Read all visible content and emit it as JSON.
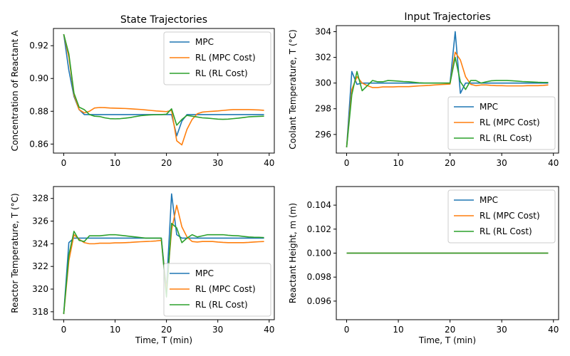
{
  "figure": {
    "colors": {
      "MPC": "#1f77b4",
      "RL (MPC Cost)": "#ff7f0e",
      "RL (RL Cost)": "#2ca02c"
    }
  },
  "chart_data": [
    {
      "type": "line",
      "title": "State Trajectories",
      "xlabel": "",
      "ylabel": "Concentration of Reactant A",
      "xlim": [
        -2,
        41
      ],
      "ylim": [
        0.8545,
        0.9305
      ],
      "xticks": [
        0,
        10,
        20,
        30,
        40
      ],
      "yticks": [
        0.86,
        0.88,
        0.9,
        0.92
      ],
      "ytick_labels": [
        "0.86",
        "0.88",
        "0.90",
        "0.92"
      ],
      "legend_position": "top-right",
      "x": [
        0,
        1,
        2,
        3,
        4,
        5,
        6,
        7,
        8,
        9,
        10,
        11,
        12,
        13,
        14,
        15,
        16,
        17,
        18,
        19,
        20,
        21,
        22,
        23,
        24,
        25,
        26,
        27,
        28,
        29,
        30,
        31,
        32,
        33,
        34,
        35,
        36,
        37,
        38,
        39
      ],
      "series": [
        {
          "name": "MPC",
          "values": [
            0.927,
            0.905,
            0.889,
            0.881,
            0.878,
            0.878,
            0.878,
            0.878,
            0.878,
            0.878,
            0.878,
            0.878,
            0.878,
            0.878,
            0.878,
            0.878,
            0.878,
            0.878,
            0.878,
            0.878,
            0.878,
            0.878,
            0.865,
            0.874,
            0.878,
            0.878,
            0.878,
            0.878,
            0.878,
            0.878,
            0.878,
            0.878,
            0.878,
            0.878,
            0.878,
            0.878,
            0.878,
            0.878,
            0.878,
            0.878
          ]
        },
        {
          "name": "RL (MPC Cost)",
          "values": [
            0.927,
            0.913,
            0.89,
            0.881,
            0.879,
            0.88,
            0.882,
            0.8823,
            0.8822,
            0.882,
            0.8819,
            0.8818,
            0.8817,
            0.8815,
            0.8813,
            0.8811,
            0.8808,
            0.8805,
            0.8802,
            0.88,
            0.8798,
            0.8805,
            0.862,
            0.8595,
            0.869,
            0.875,
            0.8785,
            0.8795,
            0.8798,
            0.88,
            0.8802,
            0.8805,
            0.8808,
            0.881,
            0.881,
            0.881,
            0.881,
            0.8809,
            0.8808,
            0.8806
          ]
        },
        {
          "name": "RL (RL Cost)",
          "values": [
            0.927,
            0.915,
            0.891,
            0.8825,
            0.881,
            0.878,
            0.877,
            0.8768,
            0.876,
            0.8755,
            0.8754,
            0.8755,
            0.8758,
            0.8762,
            0.8768,
            0.8773,
            0.8776,
            0.8778,
            0.8779,
            0.878,
            0.8782,
            0.8815,
            0.8715,
            0.875,
            0.8775,
            0.877,
            0.8765,
            0.876,
            0.8758,
            0.8755,
            0.8752,
            0.8751,
            0.8752,
            0.8755,
            0.8758,
            0.8762,
            0.8766,
            0.8768,
            0.8769,
            0.877
          ]
        }
      ]
    },
    {
      "type": "line",
      "title": "Input Trajectories",
      "xlabel": "",
      "ylabel": "Coolant Temperature, T (°C)",
      "xlim": [
        -2,
        41
      ],
      "ylim": [
        294.55,
        304.47
      ],
      "xticks": [
        0,
        10,
        20,
        30,
        40
      ],
      "yticks": [
        296,
        298,
        300,
        302,
        304
      ],
      "ytick_labels": [
        "296",
        "298",
        "300",
        "302",
        "304"
      ],
      "legend_position": "lower-right",
      "x": [
        0,
        1,
        2,
        3,
        4,
        5,
        6,
        7,
        8,
        9,
        10,
        11,
        12,
        13,
        14,
        15,
        16,
        17,
        18,
        19,
        20,
        21,
        22,
        23,
        24,
        25,
        26,
        27,
        28,
        29,
        30,
        31,
        32,
        33,
        34,
        35,
        36,
        37,
        38,
        39
      ],
      "series": [
        {
          "name": "MPC",
          "values": [
            295.0,
            300.9,
            299.9,
            300.0,
            300.0,
            300.0,
            300.0,
            300.0,
            300.0,
            300.0,
            300.0,
            300.0,
            300.0,
            300.0,
            300.0,
            300.0,
            300.0,
            300.0,
            300.0,
            300.0,
            300.0,
            304.0,
            299.2,
            300.0,
            300.0,
            300.0,
            300.0,
            300.0,
            300.0,
            300.0,
            300.0,
            300.0,
            300.0,
            300.0,
            300.0,
            300.0,
            300.0,
            300.0,
            300.0,
            300.0
          ]
        },
        {
          "name": "RL (MPC Cost)",
          "values": [
            295.0,
            299.5,
            300.5,
            300.0,
            299.8,
            299.65,
            299.65,
            299.7,
            299.7,
            299.7,
            299.72,
            299.72,
            299.72,
            299.75,
            299.78,
            299.8,
            299.82,
            299.85,
            299.88,
            299.9,
            299.92,
            302.4,
            301.8,
            300.5,
            299.9,
            299.8,
            299.85,
            299.85,
            299.82,
            299.8,
            299.8,
            299.78,
            299.78,
            299.78,
            299.78,
            299.8,
            299.8,
            299.8,
            299.82,
            299.85
          ]
        },
        {
          "name": "RL (RL Cost)",
          "values": [
            295.0,
            299.1,
            300.9,
            299.4,
            299.8,
            300.2,
            300.1,
            300.1,
            300.2,
            300.18,
            300.15,
            300.12,
            300.1,
            300.06,
            300.02,
            300.0,
            300.0,
            300.0,
            300.0,
            300.0,
            300.0,
            302.0,
            300.1,
            299.5,
            300.2,
            300.2,
            300.0,
            300.1,
            300.18,
            300.2,
            300.2,
            300.2,
            300.18,
            300.15,
            300.12,
            300.1,
            300.08,
            300.06,
            300.05,
            300.05
          ]
        }
      ]
    },
    {
      "type": "line",
      "title": "",
      "xlabel": "Time, T (min)",
      "ylabel": "Reactor Temperature, T (°C)",
      "xlim": [
        -2,
        41
      ],
      "ylim": [
        317.3,
        329.05
      ],
      "xticks": [
        0,
        10,
        20,
        30,
        40
      ],
      "yticks": [
        318,
        320,
        322,
        324,
        326,
        328
      ],
      "ytick_labels": [
        "318",
        "320",
        "322",
        "324",
        "326",
        "328"
      ],
      "legend_position": "lower-right",
      "x": [
        0,
        1,
        2,
        3,
        4,
        5,
        6,
        7,
        8,
        9,
        10,
        11,
        12,
        13,
        14,
        15,
        16,
        17,
        18,
        19,
        20,
        21,
        22,
        23,
        24,
        25,
        26,
        27,
        28,
        29,
        30,
        31,
        32,
        33,
        34,
        35,
        36,
        37,
        38,
        39
      ],
      "series": [
        {
          "name": "MPC",
          "values": [
            317.8,
            324.1,
            324.5,
            324.5,
            324.5,
            324.5,
            324.5,
            324.5,
            324.5,
            324.5,
            324.5,
            324.5,
            324.5,
            324.5,
            324.5,
            324.5,
            324.5,
            324.5,
            324.5,
            324.5,
            320.0,
            328.4,
            324.8,
            324.5,
            324.5,
            324.5,
            324.5,
            324.5,
            324.5,
            324.5,
            324.5,
            324.5,
            324.5,
            324.5,
            324.5,
            324.5,
            324.5,
            324.5,
            324.5,
            324.5
          ]
        },
        {
          "name": "RL (MPC Cost)",
          "values": [
            317.8,
            322.5,
            324.8,
            324.4,
            324.1,
            324.0,
            324.0,
            324.05,
            324.05,
            324.05,
            324.08,
            324.08,
            324.1,
            324.12,
            324.15,
            324.18,
            324.2,
            324.22,
            324.25,
            324.3,
            319.8,
            325.2,
            327.4,
            325.5,
            324.6,
            324.2,
            324.15,
            324.2,
            324.2,
            324.2,
            324.15,
            324.12,
            324.1,
            324.1,
            324.1,
            324.1,
            324.12,
            324.15,
            324.18,
            324.2
          ]
        },
        {
          "name": "RL (RL Cost)",
          "values": [
            317.8,
            323.0,
            325.1,
            324.3,
            324.2,
            324.7,
            324.7,
            324.7,
            324.75,
            324.8,
            324.8,
            324.75,
            324.7,
            324.65,
            324.6,
            324.55,
            324.5,
            324.5,
            324.5,
            324.5,
            319.3,
            325.8,
            325.4,
            324.1,
            324.5,
            324.8,
            324.6,
            324.7,
            324.8,
            324.8,
            324.8,
            324.8,
            324.75,
            324.72,
            324.7,
            324.65,
            324.6,
            324.58,
            324.57,
            324.55
          ]
        }
      ]
    },
    {
      "type": "line",
      "title": "",
      "xlabel": "Time, T (min)",
      "ylabel": "Reactant Height, m (m)",
      "xlim": [
        -2,
        41
      ],
      "ylim": [
        0.09445,
        0.10555
      ],
      "xticks": [
        0,
        10,
        20,
        30,
        40
      ],
      "yticks": [
        0.096,
        0.098,
        0.1,
        0.102,
        0.104
      ],
      "ytick_labels": [
        "0.096",
        "0.098",
        "0.100",
        "0.102",
        "0.104"
      ],
      "legend_position": "top-right",
      "x": [
        0,
        39
      ],
      "series": [
        {
          "name": "MPC",
          "values": [
            0.1,
            0.1
          ]
        },
        {
          "name": "RL (MPC Cost)",
          "values": [
            0.1,
            0.1
          ]
        },
        {
          "name": "RL (RL Cost)",
          "values": [
            0.1,
            0.1
          ]
        }
      ]
    }
  ]
}
